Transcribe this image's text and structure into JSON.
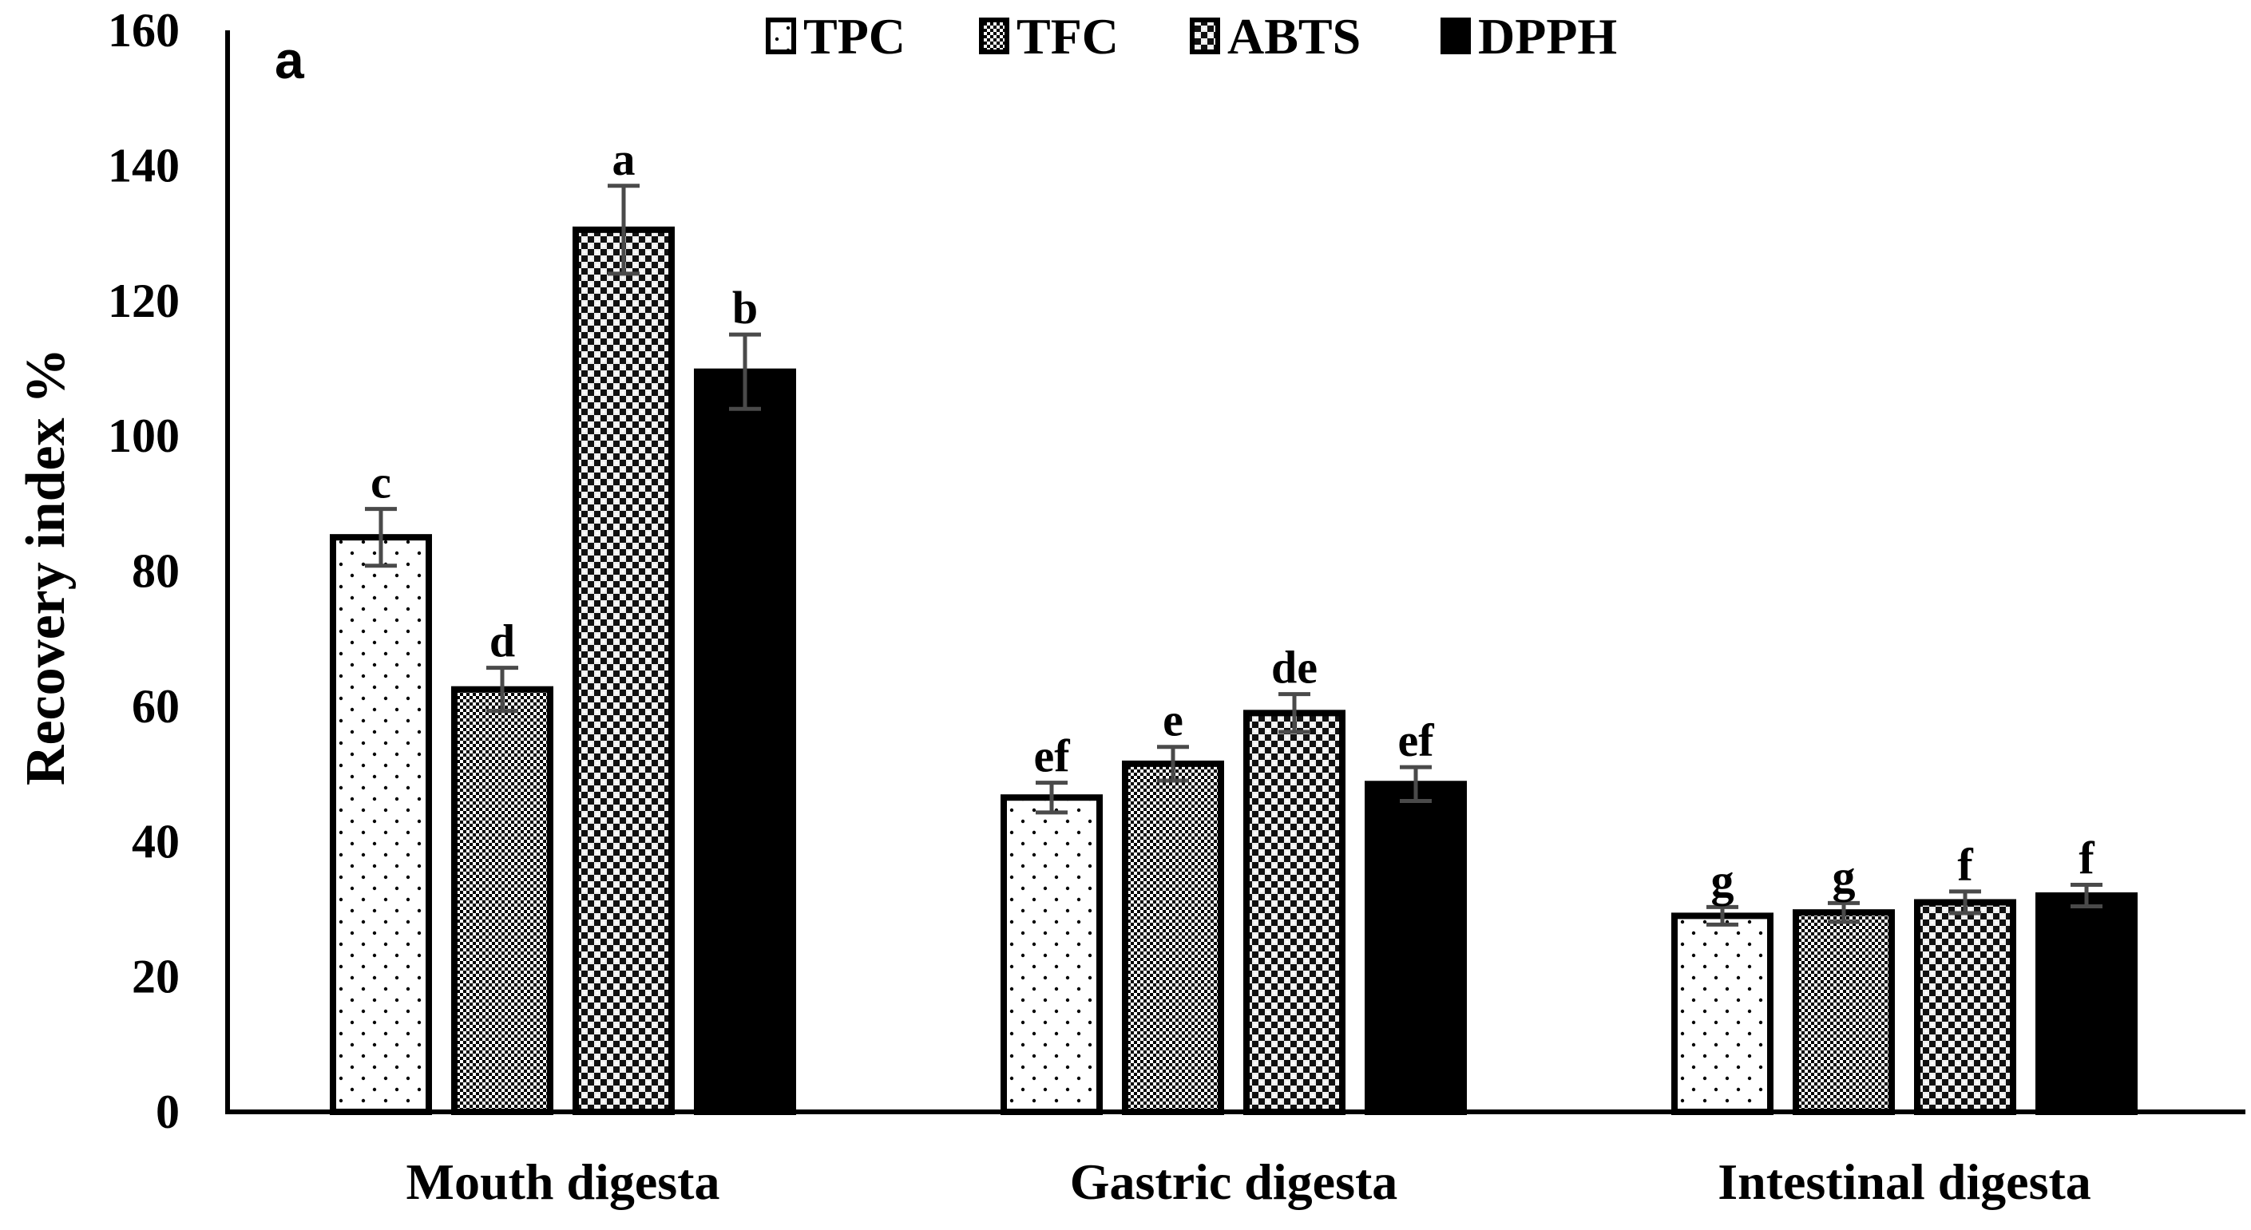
{
  "chart_data": {
    "type": "bar",
    "panel_label": "a",
    "ylabel": "Recovery index %",
    "xlabel": "",
    "ylim": [
      0,
      160
    ],
    "yticks": [
      0,
      20,
      40,
      60,
      80,
      100,
      120,
      140,
      160
    ],
    "categories": [
      "Mouth digesta",
      "Gastric digesta",
      "Intestinal digesta"
    ],
    "legend_position": "top-center",
    "series": [
      {
        "name": "TPC",
        "pattern": "dots-sparse",
        "values": [
          85,
          46.5,
          29
        ],
        "errors": [
          4.2,
          2.2,
          1.3
        ],
        "letters": [
          "c",
          "ef",
          "g"
        ]
      },
      {
        "name": "TFC",
        "pattern": "checker-dense",
        "values": [
          62.5,
          51.5,
          29.5
        ],
        "errors": [
          3.2,
          2.5,
          1.4
        ],
        "letters": [
          "d",
          "e",
          "g"
        ]
      },
      {
        "name": "ABTS",
        "pattern": "checker-light",
        "values": [
          130.5,
          59,
          31
        ],
        "errors": [
          6.5,
          2.8,
          1.6
        ],
        "letters": [
          "a",
          "de",
          "f"
        ]
      },
      {
        "name": "DPPH",
        "pattern": "solid-black",
        "values": [
          109.5,
          48.5,
          32
        ],
        "errors": [
          5.5,
          2.5,
          1.6
        ],
        "letters": [
          "b",
          "ef",
          "f"
        ]
      }
    ]
  }
}
